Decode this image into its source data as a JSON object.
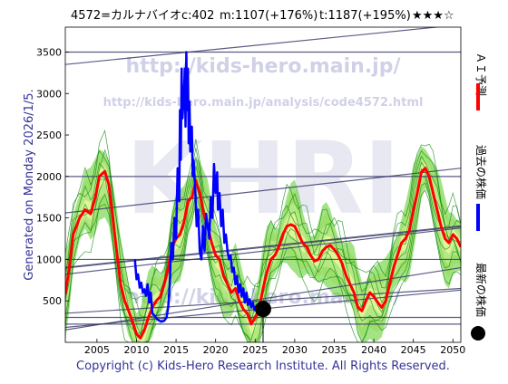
{
  "header": {
    "stock": "4572=カルナバイオ",
    "current": "c:402",
    "mean": "m:1107(+176%)",
    "target": "t:1187(+195%)",
    "stars": "★★★☆"
  },
  "side_text": "Generated on Monday 2026/1/5.",
  "watermarks": {
    "url_main": "http://kids-hero.main.jp/",
    "url_analysis": "http://kids-hero.main.jp/analysis/code4572.html",
    "big": "KHRI",
    "lower": "http://kids-hero.main.jp/"
  },
  "legend": {
    "ai_forecast": "ＡＩ予測",
    "past_price": "過去の株価",
    "latest_price": "最新の株価"
  },
  "footer": "Copyright (c) Kids-Hero Research Institute. All Rights Reserved.",
  "colors": {
    "forecast": "#ff0000",
    "past": "#0000ff",
    "latest": "#000000",
    "band_fill": "#55cc22",
    "band_line": "#118811",
    "band_yellow": "#ffffaa",
    "trend": "#333366",
    "watermark": "#9999cc"
  },
  "chart_data": {
    "type": "line",
    "xlim": [
      2001,
      2051
    ],
    "ylim": [
      0,
      3800
    ],
    "x_ticks": [
      2005,
      2010,
      2015,
      2020,
      2025,
      2030,
      2035,
      2040,
      2045,
      2050
    ],
    "y_ticks": [
      500,
      1000,
      1500,
      2000,
      2500,
      3000,
      3500
    ],
    "grid": false,
    "series": [
      {
        "name": "ＡＩ予測",
        "color": "#ff0000",
        "points": [
          [
            2001,
            580
          ],
          [
            2001.5,
            900
          ],
          [
            2002,
            1300
          ],
          [
            2002.8,
            1500
          ],
          [
            2003.5,
            1600
          ],
          [
            2004.2,
            1550
          ],
          [
            2004.8,
            1750
          ],
          [
            2005.3,
            2000
          ],
          [
            2006,
            2060
          ],
          [
            2006.5,
            1900
          ],
          [
            2007,
            1500
          ],
          [
            2007.6,
            1000
          ],
          [
            2008,
            700
          ],
          [
            2008.5,
            500
          ],
          [
            2009,
            380
          ],
          [
            2009.5,
            250
          ],
          [
            2010,
            100
          ],
          [
            2010.5,
            50
          ],
          [
            2011,
            150
          ],
          [
            2011.5,
            300
          ],
          [
            2012,
            420
          ],
          [
            2012.5,
            500
          ],
          [
            2013,
            550
          ],
          [
            2013.5,
            700
          ],
          [
            2014,
            900
          ],
          [
            2014.5,
            1150
          ],
          [
            2015,
            1250
          ],
          [
            2015.5,
            1300
          ],
          [
            2016,
            1450
          ],
          [
            2016.5,
            1700
          ],
          [
            2017,
            1750
          ],
          [
            2017.5,
            1950
          ],
          [
            2018,
            1800
          ],
          [
            2018.5,
            1550
          ],
          [
            2019,
            1400
          ],
          [
            2019.5,
            1200
          ],
          [
            2020,
            1050
          ],
          [
            2020.5,
            1000
          ],
          [
            2021,
            800
          ],
          [
            2021.5,
            700
          ],
          [
            2022,
            600
          ],
          [
            2022.5,
            650
          ],
          [
            2023,
            500
          ],
          [
            2023.5,
            400
          ],
          [
            2024,
            350
          ],
          [
            2024.5,
            220
          ],
          [
            2025,
            300
          ],
          [
            2025.5,
            400
          ],
          [
            2026,
            650
          ],
          [
            2026.5,
            850
          ],
          [
            2027,
            1000
          ],
          [
            2027.5,
            1050
          ],
          [
            2028,
            1150
          ],
          [
            2028.5,
            1300
          ],
          [
            2029,
            1400
          ],
          [
            2029.5,
            1420
          ],
          [
            2030,
            1400
          ],
          [
            2030.5,
            1300
          ],
          [
            2031,
            1200
          ],
          [
            2031.5,
            1150
          ],
          [
            2032,
            1050
          ],
          [
            2032.5,
            980
          ],
          [
            2033,
            1000
          ],
          [
            2033.5,
            1100
          ],
          [
            2034,
            1150
          ],
          [
            2034.5,
            1170
          ],
          [
            2035,
            1120
          ],
          [
            2035.5,
            1050
          ],
          [
            2036,
            950
          ],
          [
            2036.5,
            800
          ],
          [
            2037,
            700
          ],
          [
            2037.5,
            600
          ],
          [
            2038,
            420
          ],
          [
            2038.5,
            380
          ],
          [
            2039,
            500
          ],
          [
            2039.5,
            600
          ],
          [
            2040,
            550
          ],
          [
            2040.5,
            480
          ],
          [
            2041,
            420
          ],
          [
            2041.5,
            500
          ],
          [
            2042,
            700
          ],
          [
            2042.5,
            900
          ],
          [
            2043,
            1050
          ],
          [
            2043.5,
            1200
          ],
          [
            2044,
            1250
          ],
          [
            2044.5,
            1350
          ],
          [
            2045,
            1600
          ],
          [
            2045.5,
            1800
          ],
          [
            2046,
            2050
          ],
          [
            2046.5,
            2100
          ],
          [
            2047,
            2000
          ],
          [
            2047.5,
            1800
          ],
          [
            2048,
            1600
          ],
          [
            2048.5,
            1400
          ],
          [
            2049,
            1250
          ],
          [
            2049.5,
            1200
          ],
          [
            2050,
            1300
          ],
          [
            2050.5,
            1250
          ],
          [
            2051,
            1150
          ]
        ]
      },
      {
        "name": "過去の株価",
        "color": "#0000ff",
        "points": [
          [
            2009.8,
            1000
          ],
          [
            2010,
            760
          ],
          [
            2010.2,
            820
          ],
          [
            2010.4,
            660
          ],
          [
            2010.6,
            720
          ],
          [
            2010.8,
            600
          ],
          [
            2011,
            640
          ],
          [
            2011.2,
            560
          ],
          [
            2011.4,
            700
          ],
          [
            2011.6,
            480
          ],
          [
            2011.8,
            600
          ],
          [
            2012,
            350
          ],
          [
            2012.3,
            320
          ],
          [
            2012.6,
            280
          ],
          [
            2012.9,
            260
          ],
          [
            2013.2,
            250
          ],
          [
            2013.5,
            260
          ],
          [
            2013.8,
            300
          ],
          [
            2014,
            420
          ],
          [
            2014.2,
            700
          ],
          [
            2014.4,
            1200
          ],
          [
            2014.6,
            1000
          ],
          [
            2014.8,
            1500
          ],
          [
            2015,
            1250
          ],
          [
            2015.2,
            2100
          ],
          [
            2015.4,
            1700
          ],
          [
            2015.5,
            2800
          ],
          [
            2015.6,
            2200
          ],
          [
            2015.7,
            3300
          ],
          [
            2015.8,
            2700
          ],
          [
            2016,
            3000
          ],
          [
            2016.1,
            3300
          ],
          [
            2016.2,
            2600
          ],
          [
            2016.3,
            3500
          ],
          [
            2016.4,
            2800
          ],
          [
            2016.5,
            3300
          ],
          [
            2016.6,
            2400
          ],
          [
            2016.7,
            2900
          ],
          [
            2016.8,
            2300
          ],
          [
            2017,
            2600
          ],
          [
            2017.1,
            2000
          ],
          [
            2017.2,
            2200
          ],
          [
            2017.4,
            1900
          ],
          [
            2017.6,
            1400
          ],
          [
            2017.8,
            1600
          ],
          [
            2018,
            1100
          ],
          [
            2018.2,
            1000
          ],
          [
            2018.4,
            1400
          ],
          [
            2018.6,
            1100
          ],
          [
            2018.8,
            1550
          ],
          [
            2019,
            1400
          ],
          [
            2019.2,
            1250
          ],
          [
            2019.4,
            1750
          ],
          [
            2019.6,
            1500
          ],
          [
            2019.8,
            2150
          ],
          [
            2020,
            1800
          ],
          [
            2020.2,
            2050
          ],
          [
            2020.3,
            1600
          ],
          [
            2020.5,
            1800
          ],
          [
            2020.7,
            1400
          ],
          [
            2020.9,
            1600
          ],
          [
            2021.1,
            1200
          ],
          [
            2021.3,
            1300
          ],
          [
            2021.5,
            1100
          ],
          [
            2021.7,
            1000
          ],
          [
            2021.9,
            1050
          ],
          [
            2022.1,
            850
          ],
          [
            2022.3,
            900
          ],
          [
            2022.5,
            700
          ],
          [
            2022.7,
            800
          ],
          [
            2022.9,
            600
          ],
          [
            2023.1,
            700
          ],
          [
            2023.3,
            550
          ],
          [
            2023.5,
            650
          ],
          [
            2023.7,
            480
          ],
          [
            2023.9,
            600
          ],
          [
            2024.1,
            450
          ],
          [
            2024.3,
            520
          ],
          [
            2024.5,
            420
          ],
          [
            2024.7,
            480
          ],
          [
            2024.9,
            390
          ],
          [
            2025.1,
            430
          ],
          [
            2025.3,
            370
          ],
          [
            2025.5,
            410
          ],
          [
            2025.7,
            380
          ],
          [
            2025.9,
            402
          ]
        ]
      }
    ],
    "latest_point": {
      "x": 2026,
      "y": 402
    }
  }
}
